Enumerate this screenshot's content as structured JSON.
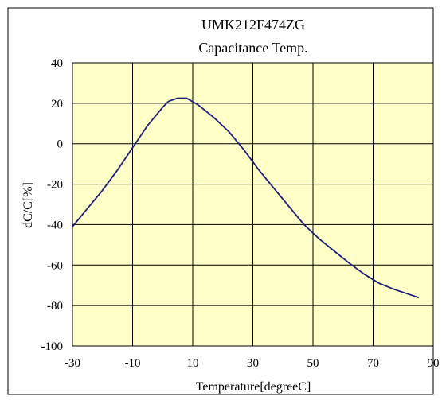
{
  "chart_data": {
    "type": "line",
    "title": "UMK212F474ZG",
    "subtitle": "Capacitance Temp.",
    "xlabel": "Temperature[degreeC]",
    "ylabel": "dC/C[%]",
    "xlim": [
      -30,
      90
    ],
    "ylim": [
      -100,
      40
    ],
    "xticks": [
      -30,
      -10,
      10,
      30,
      50,
      70,
      90
    ],
    "yticks": [
      40,
      20,
      0,
      -20,
      -40,
      -60,
      -80,
      -100
    ],
    "xtick_labels": [
      "-30",
      "-10",
      "10",
      "30",
      "50",
      "70",
      "90"
    ],
    "ytick_labels": [
      "40",
      "20",
      "0",
      "-20",
      "-40",
      "-60",
      "-80",
      "-100"
    ],
    "grid": true,
    "series": [
      {
        "x": [
          -30,
          -25,
          -20,
          -15,
          -10,
          -5,
          0,
          2,
          5,
          8,
          12,
          17,
          22,
          27,
          32,
          37,
          42,
          47,
          52,
          57,
          62,
          67,
          72,
          77,
          82,
          85
        ],
        "y": [
          -41,
          -32,
          -23,
          -13,
          -2,
          9,
          18,
          21,
          22.5,
          22.5,
          19,
          13,
          6,
          -3,
          -13,
          -22,
          -31,
          -40,
          -47,
          -53,
          -59,
          -64.5,
          -69,
          -72,
          -74.5,
          -76
        ]
      }
    ]
  },
  "colors": {
    "plot_background": "#FFFFC8",
    "line": "#1F1F7A",
    "grid": "#000000",
    "frame": "#000000"
  }
}
